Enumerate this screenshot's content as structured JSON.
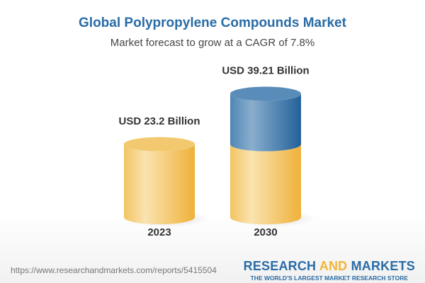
{
  "title": "Global Polypropylene Compounds Market",
  "subtitle": "Market forecast to grow at a CAGR of 7.8%",
  "chart_data": {
    "type": "bar",
    "style": "3d-cylinder",
    "categories": [
      "2023",
      "2030"
    ],
    "values": [
      23.2,
      39.21
    ],
    "data_labels": [
      "USD 23.2 Billion",
      "USD 39.21 Billion"
    ],
    "unit": "USD Billion",
    "grid": false,
    "colors": {
      "base": "#f2c25a",
      "growth": "#2f6fa5"
    }
  },
  "footer": {
    "url": "https://www.researchandmarkets.com/reports/5415504",
    "logo_part1": "RESEARCH ",
    "logo_part2": "AND",
    "logo_part3": " MARKETS",
    "logo_tagline": "THE WORLD'S LARGEST MARKET RESEARCH STORE"
  }
}
